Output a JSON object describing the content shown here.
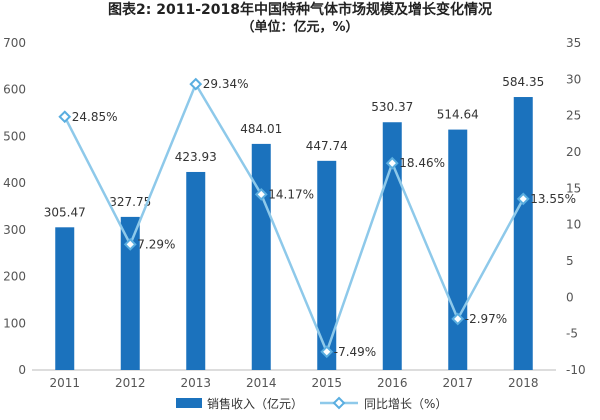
{
  "title_line1": "图表2:  2011-2018年中国特种气体市场规模及增长变化情况",
  "title_line2": "（单位：亿元，%）",
  "chart_data": {
    "type": "bar",
    "categories": [
      "2011",
      "2012",
      "2013",
      "2014",
      "2015",
      "2016",
      "2017",
      "2018"
    ],
    "series": [
      {
        "name": "销售收入（亿元）",
        "type": "bar",
        "axis": "left",
        "values": [
          305.47,
          327.75,
          423.93,
          484.01,
          447.74,
          530.37,
          514.64,
          584.35
        ],
        "labels": [
          "305.47",
          "327.75",
          "423.93",
          "484.01",
          "447.74",
          "530.37",
          "514.64",
          "584.35"
        ],
        "color": "#1b72bd"
      },
      {
        "name": "同比增长（%）",
        "type": "line",
        "axis": "right",
        "values": [
          24.85,
          7.29,
          29.34,
          14.17,
          -7.49,
          18.46,
          -2.97,
          13.55
        ],
        "labels": [
          "24.85%",
          "7.29%",
          "29.34%",
          "14.17%",
          "-7.49%",
          "18.46%",
          "-2.97%",
          "13.55%"
        ],
        "color": "#8ec9ea",
        "marker_color": "#5aaee0"
      }
    ],
    "y_left": {
      "min": 0,
      "max": 700,
      "ticks": [
        "0",
        "100",
        "200",
        "300",
        "400",
        "500",
        "600",
        "700"
      ]
    },
    "y_right": {
      "min": -10,
      "max": 35,
      "ticks": [
        "-10",
        "-5",
        "0",
        "5",
        "10",
        "15",
        "20",
        "25",
        "30",
        "35"
      ]
    },
    "grid": false,
    "legend_position": "bottom"
  }
}
